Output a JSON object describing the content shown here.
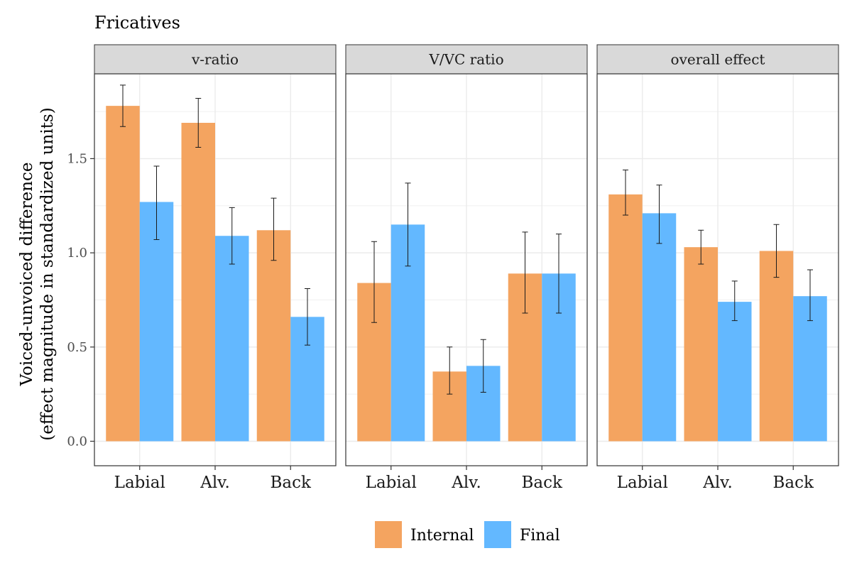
{
  "chart_data": {
    "type": "bar",
    "title": "Fricatives",
    "ylabel_lines": [
      "Voiced-unvoiced difference",
      "(effect magnitude in standardized units)"
    ],
    "xlabel": "",
    "ylim": [
      -0.13,
      1.95
    ],
    "yticks": [
      "0.0",
      "0.5",
      "1.0",
      "1.5"
    ],
    "grid": true,
    "legend_position": "bottom",
    "categories": [
      "Labial",
      "Alv.",
      "Back"
    ],
    "series_names": [
      "Internal",
      "Final"
    ],
    "colors": {
      "Internal": "#F4A460",
      "Final": "#63B8FF"
    },
    "panels": [
      {
        "label": "v-ratio",
        "series": [
          {
            "name": "Internal",
            "values": [
              1.78,
              1.69,
              1.12
            ],
            "lower": [
              1.67,
              1.56,
              0.96
            ],
            "upper": [
              1.89,
              1.82,
              1.29
            ]
          },
          {
            "name": "Final",
            "values": [
              1.27,
              1.09,
              0.66
            ],
            "lower": [
              1.07,
              0.94,
              0.51
            ],
            "upper": [
              1.46,
              1.24,
              0.81
            ]
          }
        ]
      },
      {
        "label": "V/VC ratio",
        "series": [
          {
            "name": "Internal",
            "values": [
              0.84,
              0.37,
              0.89
            ],
            "lower": [
              0.63,
              0.25,
              0.68
            ],
            "upper": [
              1.06,
              0.5,
              1.11
            ]
          },
          {
            "name": "Final",
            "values": [
              1.15,
              0.4,
              0.89
            ],
            "lower": [
              0.93,
              0.26,
              0.68
            ],
            "upper": [
              1.37,
              0.54,
              1.1
            ]
          }
        ]
      },
      {
        "label": "overall effect",
        "series": [
          {
            "name": "Internal",
            "values": [
              1.31,
              1.03,
              1.01
            ],
            "lower": [
              1.2,
              0.94,
              0.87
            ],
            "upper": [
              1.44,
              1.12,
              1.15
            ]
          },
          {
            "name": "Final",
            "values": [
              1.21,
              0.74,
              0.77
            ],
            "lower": [
              1.05,
              0.64,
              0.64
            ],
            "upper": [
              1.36,
              0.85,
              0.91
            ]
          }
        ]
      }
    ]
  }
}
